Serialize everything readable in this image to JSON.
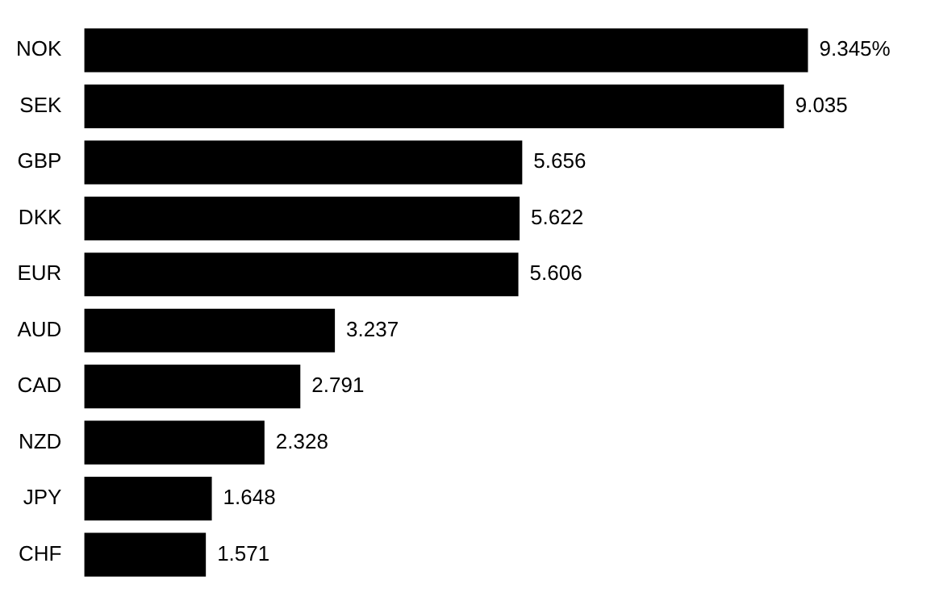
{
  "chart_data": {
    "type": "bar",
    "orientation": "horizontal",
    "categories": [
      "NOK",
      "SEK",
      "GBP",
      "DKK",
      "EUR",
      "AUD",
      "CAD",
      "NZD",
      "JPY",
      "CHF"
    ],
    "values": [
      9.345,
      9.035,
      5.656,
      5.622,
      5.606,
      3.237,
      2.791,
      2.328,
      1.648,
      1.571
    ],
    "value_labels": [
      "9.345%",
      "9.035",
      "5.656",
      "5.622",
      "5.606",
      "3.237",
      "2.791",
      "2.328",
      "1.648",
      "1.571"
    ],
    "color": "#000000",
    "grid": false,
    "legend": false
  }
}
